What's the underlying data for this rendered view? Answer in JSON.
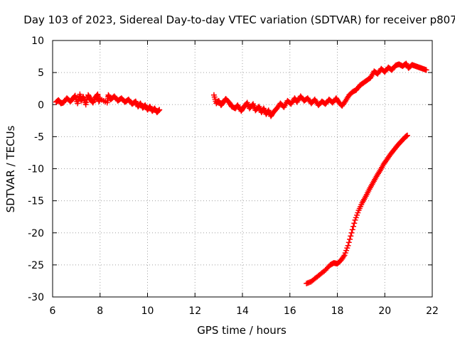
{
  "chart_data": {
    "type": "scatter",
    "title": "Day 103 of 2023, Sidereal Day-to-day VTEC variation (SDTVAR) for receiver p807",
    "xlabel": "GPS time / hours",
    "ylabel": "SDTVAR / TECUs",
    "xlim": [
      6,
      22
    ],
    "ylim": [
      -30,
      10
    ],
    "xticks": [
      6,
      8,
      10,
      12,
      14,
      16,
      18,
      20,
      22
    ],
    "yticks": [
      -30,
      -25,
      -20,
      -15,
      -10,
      -5,
      0,
      5,
      10
    ],
    "grid": true,
    "marker": "+",
    "color": "#ff0000",
    "series": [
      {
        "name": "cluster-a",
        "points": [
          [
            6.15,
            0.4
          ],
          [
            6.25,
            0.7
          ],
          [
            6.35,
            0.2
          ],
          [
            6.45,
            0.3
          ],
          [
            6.6,
            1.0
          ],
          [
            6.75,
            0.5
          ],
          [
            6.85,
            0.9
          ],
          [
            6.95,
            1.4
          ],
          [
            7.05,
            0.2
          ],
          [
            7.15,
            1.6
          ],
          [
            7.2,
            0.6
          ],
          [
            7.3,
            1.2
          ],
          [
            7.4,
            0.0
          ],
          [
            7.5,
            1.5
          ],
          [
            7.6,
            0.8
          ],
          [
            7.7,
            0.3
          ],
          [
            7.8,
            1.1
          ],
          [
            7.9,
            1.6
          ],
          [
            7.95,
            0.5
          ],
          [
            8.0,
            0.9
          ],
          [
            8.3,
            0.3
          ],
          [
            8.35,
            1.5
          ],
          [
            8.45,
            0.8
          ],
          [
            8.6,
            1.3
          ],
          [
            8.75,
            0.6
          ],
          [
            8.9,
            1.0
          ],
          [
            9.05,
            0.4
          ],
          [
            9.2,
            0.8
          ],
          [
            9.35,
            0.1
          ],
          [
            9.5,
            0.5
          ],
          [
            9.6,
            -0.3
          ],
          [
            9.7,
            0.2
          ],
          [
            9.8,
            -0.5
          ],
          [
            9.9,
            -0.1
          ],
          [
            10.0,
            -0.8
          ],
          [
            10.1,
            -0.3
          ],
          [
            10.2,
            -1.0
          ],
          [
            10.3,
            -0.6
          ],
          [
            10.4,
            -1.2
          ],
          [
            10.5,
            -0.8
          ]
        ]
      },
      {
        "name": "cluster-b",
        "points": [
          [
            12.8,
            1.5
          ],
          [
            12.9,
            0.2
          ],
          [
            13.0,
            0.6
          ],
          [
            13.1,
            -0.1
          ],
          [
            13.2,
            0.4
          ],
          [
            13.3,
            0.9
          ],
          [
            13.45,
            0.3
          ],
          [
            13.55,
            -0.3
          ],
          [
            13.7,
            -0.6
          ],
          [
            13.8,
            -0.1
          ],
          [
            13.95,
            -1.0
          ],
          [
            14.05,
            -0.4
          ],
          [
            14.2,
            0.3
          ],
          [
            14.3,
            -0.6
          ],
          [
            14.45,
            0.1
          ],
          [
            14.55,
            -0.9
          ],
          [
            14.7,
            -0.3
          ],
          [
            14.8,
            -1.2
          ],
          [
            14.9,
            -0.6
          ],
          [
            15.0,
            -1.5
          ],
          [
            15.1,
            -0.9
          ],
          [
            15.2,
            -1.8
          ],
          [
            15.3,
            -1.2
          ],
          [
            15.45,
            -0.6
          ],
          [
            15.6,
            0.2
          ],
          [
            15.75,
            -0.4
          ],
          [
            15.9,
            0.6
          ],
          [
            16.05,
            0.1
          ],
          [
            16.2,
            1.0
          ],
          [
            16.3,
            0.4
          ],
          [
            16.45,
            1.3
          ],
          [
            16.6,
            0.6
          ],
          [
            16.75,
            1.0
          ],
          [
            16.9,
            0.2
          ],
          [
            17.05,
            0.8
          ],
          [
            17.2,
            -0.1
          ],
          [
            17.35,
            0.5
          ],
          [
            17.5,
            0.1
          ],
          [
            17.65,
            0.8
          ],
          [
            17.8,
            0.3
          ],
          [
            17.95,
            1.0
          ],
          [
            18.05,
            0.4
          ],
          [
            18.2,
            -0.2
          ],
          [
            18.35,
            0.6
          ],
          [
            18.5,
            1.5
          ],
          [
            18.65,
            2.0
          ],
          [
            18.8,
            2.3
          ],
          [
            18.95,
            3.0
          ],
          [
            19.1,
            3.4
          ],
          [
            19.25,
            3.8
          ],
          [
            19.4,
            4.2
          ],
          [
            19.55,
            5.2
          ],
          [
            19.7,
            4.8
          ],
          [
            19.85,
            5.6
          ],
          [
            20.0,
            5.1
          ],
          [
            20.15,
            5.8
          ],
          [
            20.3,
            5.4
          ],
          [
            20.45,
            6.1
          ],
          [
            20.6,
            6.3
          ],
          [
            20.75,
            6.0
          ],
          [
            20.9,
            6.4
          ],
          [
            21.0,
            5.7
          ],
          [
            21.15,
            6.2
          ],
          [
            21.3,
            6.0
          ],
          [
            21.45,
            5.8
          ],
          [
            21.6,
            5.6
          ],
          [
            21.75,
            5.4
          ]
        ]
      },
      {
        "name": "descending-track",
        "points": [
          [
            16.7,
            -27.9
          ],
          [
            16.9,
            -27.6
          ],
          [
            17.1,
            -27.0
          ],
          [
            17.3,
            -26.4
          ],
          [
            17.5,
            -25.8
          ],
          [
            17.7,
            -25.0
          ],
          [
            17.85,
            -24.7
          ],
          [
            18.0,
            -24.8
          ],
          [
            18.15,
            -24.3
          ],
          [
            18.3,
            -23.5
          ],
          [
            18.45,
            -22.0
          ],
          [
            18.6,
            -20.0
          ],
          [
            18.75,
            -18.0
          ],
          [
            18.9,
            -16.5
          ],
          [
            19.05,
            -15.3
          ],
          [
            19.2,
            -14.3
          ],
          [
            19.35,
            -13.2
          ],
          [
            19.5,
            -12.2
          ],
          [
            19.65,
            -11.2
          ],
          [
            19.8,
            -10.3
          ],
          [
            19.95,
            -9.3
          ],
          [
            20.1,
            -8.5
          ],
          [
            20.25,
            -7.7
          ],
          [
            20.4,
            -7.0
          ],
          [
            20.55,
            -6.3
          ],
          [
            20.7,
            -5.7
          ],
          [
            20.85,
            -5.1
          ],
          [
            20.95,
            -4.8
          ]
        ]
      }
    ]
  }
}
